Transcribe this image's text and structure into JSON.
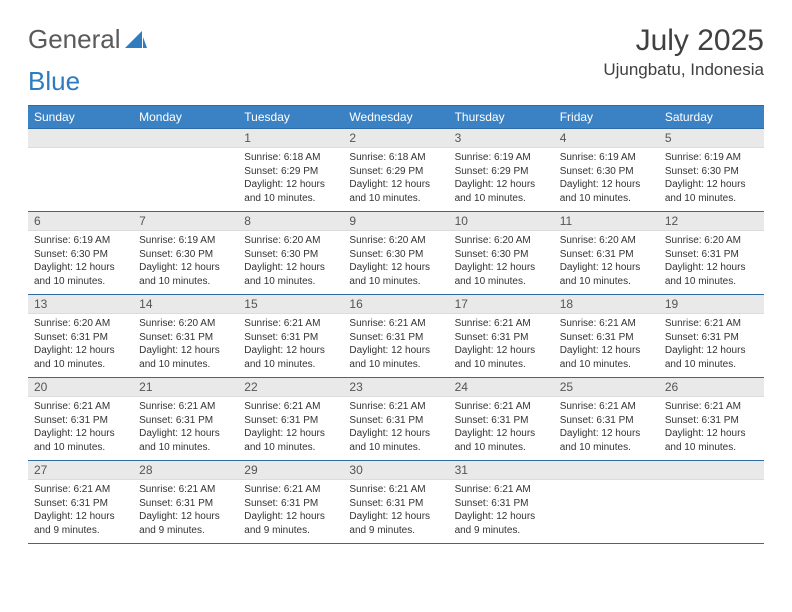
{
  "logo": {
    "word1": "General",
    "word2": "Blue"
  },
  "title": "July 2025",
  "location": "Ujungbatu, Indonesia",
  "colors": {
    "header_bg": "#3b82c4",
    "header_text": "#ffffff",
    "daynum_bg": "#e9e9e9",
    "border": "#2f6aa3",
    "text": "#333333",
    "logo_gray": "#5a5a5a",
    "logo_blue": "#2f7bbf"
  },
  "weekdays": [
    "Sunday",
    "Monday",
    "Tuesday",
    "Wednesday",
    "Thursday",
    "Friday",
    "Saturday"
  ],
  "weeks": [
    [
      null,
      null,
      {
        "n": "1",
        "sr": "6:18 AM",
        "ss": "6:29 PM",
        "dl": "12 hours and 10 minutes."
      },
      {
        "n": "2",
        "sr": "6:18 AM",
        "ss": "6:29 PM",
        "dl": "12 hours and 10 minutes."
      },
      {
        "n": "3",
        "sr": "6:19 AM",
        "ss": "6:29 PM",
        "dl": "12 hours and 10 minutes."
      },
      {
        "n": "4",
        "sr": "6:19 AM",
        "ss": "6:30 PM",
        "dl": "12 hours and 10 minutes."
      },
      {
        "n": "5",
        "sr": "6:19 AM",
        "ss": "6:30 PM",
        "dl": "12 hours and 10 minutes."
      }
    ],
    [
      {
        "n": "6",
        "sr": "6:19 AM",
        "ss": "6:30 PM",
        "dl": "12 hours and 10 minutes."
      },
      {
        "n": "7",
        "sr": "6:19 AM",
        "ss": "6:30 PM",
        "dl": "12 hours and 10 minutes."
      },
      {
        "n": "8",
        "sr": "6:20 AM",
        "ss": "6:30 PM",
        "dl": "12 hours and 10 minutes."
      },
      {
        "n": "9",
        "sr": "6:20 AM",
        "ss": "6:30 PM",
        "dl": "12 hours and 10 minutes."
      },
      {
        "n": "10",
        "sr": "6:20 AM",
        "ss": "6:30 PM",
        "dl": "12 hours and 10 minutes."
      },
      {
        "n": "11",
        "sr": "6:20 AM",
        "ss": "6:31 PM",
        "dl": "12 hours and 10 minutes."
      },
      {
        "n": "12",
        "sr": "6:20 AM",
        "ss": "6:31 PM",
        "dl": "12 hours and 10 minutes."
      }
    ],
    [
      {
        "n": "13",
        "sr": "6:20 AM",
        "ss": "6:31 PM",
        "dl": "12 hours and 10 minutes."
      },
      {
        "n": "14",
        "sr": "6:20 AM",
        "ss": "6:31 PM",
        "dl": "12 hours and 10 minutes."
      },
      {
        "n": "15",
        "sr": "6:21 AM",
        "ss": "6:31 PM",
        "dl": "12 hours and 10 minutes."
      },
      {
        "n": "16",
        "sr": "6:21 AM",
        "ss": "6:31 PM",
        "dl": "12 hours and 10 minutes."
      },
      {
        "n": "17",
        "sr": "6:21 AM",
        "ss": "6:31 PM",
        "dl": "12 hours and 10 minutes."
      },
      {
        "n": "18",
        "sr": "6:21 AM",
        "ss": "6:31 PM",
        "dl": "12 hours and 10 minutes."
      },
      {
        "n": "19",
        "sr": "6:21 AM",
        "ss": "6:31 PM",
        "dl": "12 hours and 10 minutes."
      }
    ],
    [
      {
        "n": "20",
        "sr": "6:21 AM",
        "ss": "6:31 PM",
        "dl": "12 hours and 10 minutes."
      },
      {
        "n": "21",
        "sr": "6:21 AM",
        "ss": "6:31 PM",
        "dl": "12 hours and 10 minutes."
      },
      {
        "n": "22",
        "sr": "6:21 AM",
        "ss": "6:31 PM",
        "dl": "12 hours and 10 minutes."
      },
      {
        "n": "23",
        "sr": "6:21 AM",
        "ss": "6:31 PM",
        "dl": "12 hours and 10 minutes."
      },
      {
        "n": "24",
        "sr": "6:21 AM",
        "ss": "6:31 PM",
        "dl": "12 hours and 10 minutes."
      },
      {
        "n": "25",
        "sr": "6:21 AM",
        "ss": "6:31 PM",
        "dl": "12 hours and 10 minutes."
      },
      {
        "n": "26",
        "sr": "6:21 AM",
        "ss": "6:31 PM",
        "dl": "12 hours and 10 minutes."
      }
    ],
    [
      {
        "n": "27",
        "sr": "6:21 AM",
        "ss": "6:31 PM",
        "dl": "12 hours and 9 minutes."
      },
      {
        "n": "28",
        "sr": "6:21 AM",
        "ss": "6:31 PM",
        "dl": "12 hours and 9 minutes."
      },
      {
        "n": "29",
        "sr": "6:21 AM",
        "ss": "6:31 PM",
        "dl": "12 hours and 9 minutes."
      },
      {
        "n": "30",
        "sr": "6:21 AM",
        "ss": "6:31 PM",
        "dl": "12 hours and 9 minutes."
      },
      {
        "n": "31",
        "sr": "6:21 AM",
        "ss": "6:31 PM",
        "dl": "12 hours and 9 minutes."
      },
      null,
      null
    ]
  ],
  "labels": {
    "sunrise": "Sunrise:",
    "sunset": "Sunset:",
    "daylight": "Daylight:"
  }
}
